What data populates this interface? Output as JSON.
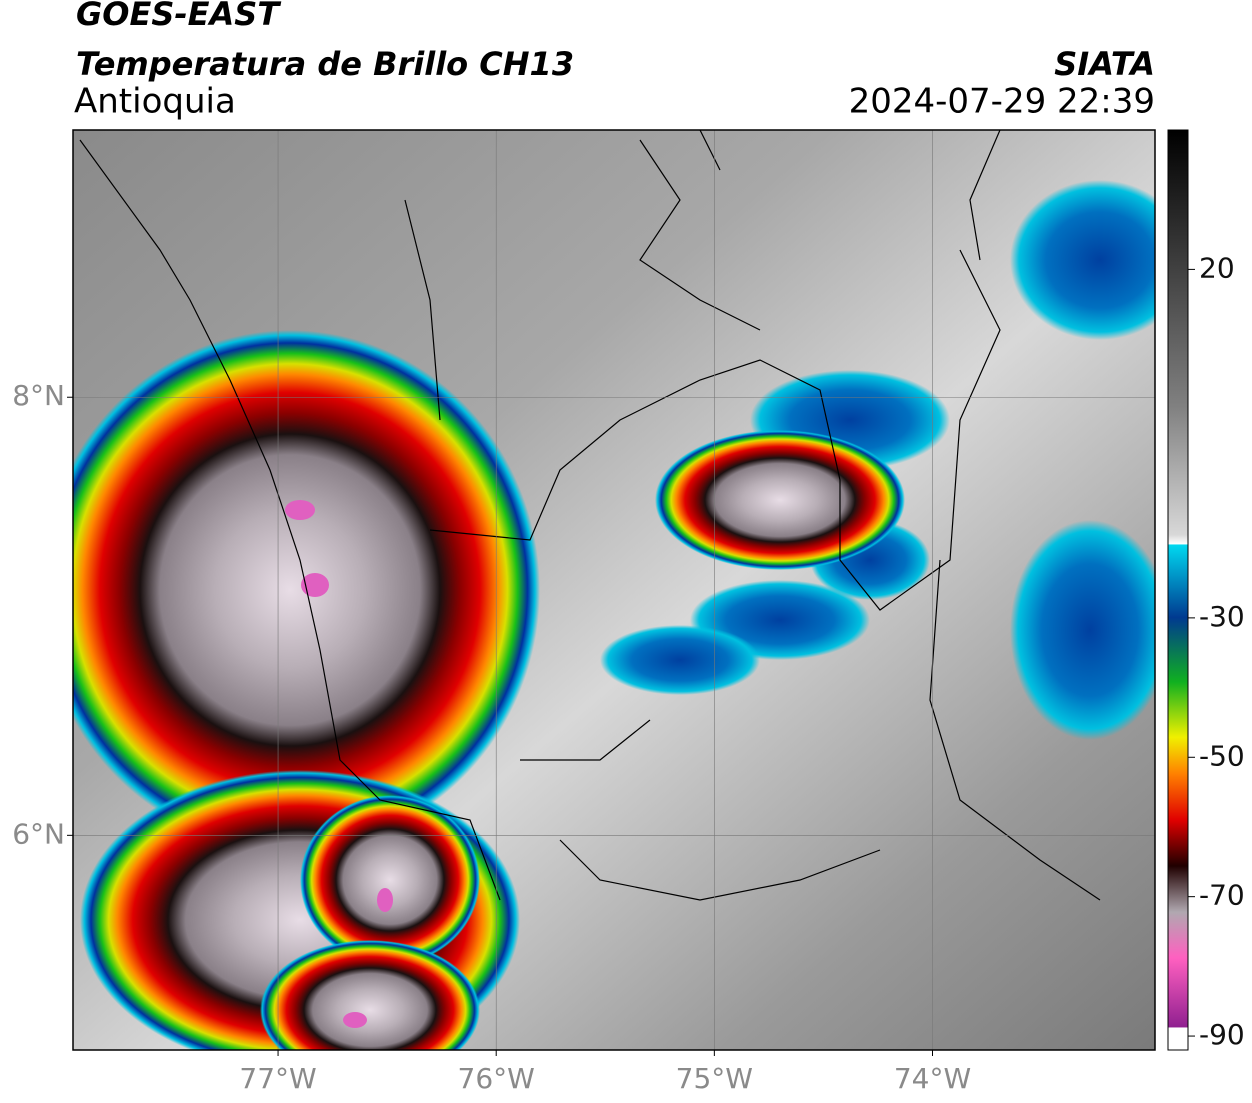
{
  "header": {
    "title": "GOES-EAST",
    "subtitle": "Temperatura de Brillo CH13",
    "region": "Antioquia",
    "source": "SIATA",
    "datetime": "2024-07-29 22:39"
  },
  "map": {
    "xlim": [
      -77.94,
      -72.98
    ],
    "ylim": [
      5.02,
      9.22
    ],
    "xticks": [
      {
        "value": -77,
        "label": "77°W"
      },
      {
        "value": -76,
        "label": "76°W"
      },
      {
        "value": -75,
        "label": "75°W"
      },
      {
        "value": -74,
        "label": "74°W"
      }
    ],
    "yticks": [
      {
        "value": 8,
        "label": "8°N"
      },
      {
        "value": 6,
        "label": "6°N"
      }
    ],
    "grid": true
  },
  "colorbar": {
    "lim": [
      -92,
      40
    ],
    "ticks": [
      20,
      -30,
      -50,
      -70,
      -90
    ]
  }
}
